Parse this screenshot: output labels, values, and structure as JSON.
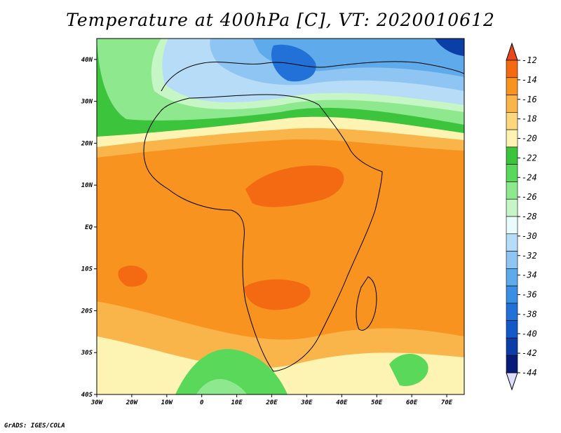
{
  "title": "Temperature at 400hPa [C], VT: 2020010612",
  "credit": "GrADS: IGES/COLA",
  "map": {
    "lon_range": [
      -30,
      75
    ],
    "lat_range": [
      -40,
      45
    ],
    "lon_ticks": [
      "30W",
      "20W",
      "10W",
      "0",
      "10E",
      "20E",
      "30E",
      "40E",
      "50E",
      "60E",
      "70E"
    ],
    "lat_ticks": [
      "40N",
      "30N",
      "20N",
      "10N",
      "EQ",
      "10S",
      "20S",
      "30S",
      "40S"
    ]
  },
  "colorbar": {
    "labels": [
      "-12",
      "-14",
      "-16",
      "-18",
      "-20",
      "-22",
      "-24",
      "-26",
      "-28",
      "-30",
      "-32",
      "-34",
      "-36",
      "-38",
      "-40",
      "-42",
      "-44"
    ],
    "colors": [
      "#e8481c",
      "#f36a12",
      "#f7931e",
      "#f9b44a",
      "#fcd77b",
      "#fdf3b3",
      "#3cc43c",
      "#5ad85a",
      "#8ee88e",
      "#c6f5c6",
      "#e9fbfb",
      "#b6dcf8",
      "#8ec5f2",
      "#5faaea",
      "#3b8fe2",
      "#2271d8",
      "#1559c8",
      "#0c3ea8",
      "#071b78",
      "#dcdcfc"
    ]
  }
}
